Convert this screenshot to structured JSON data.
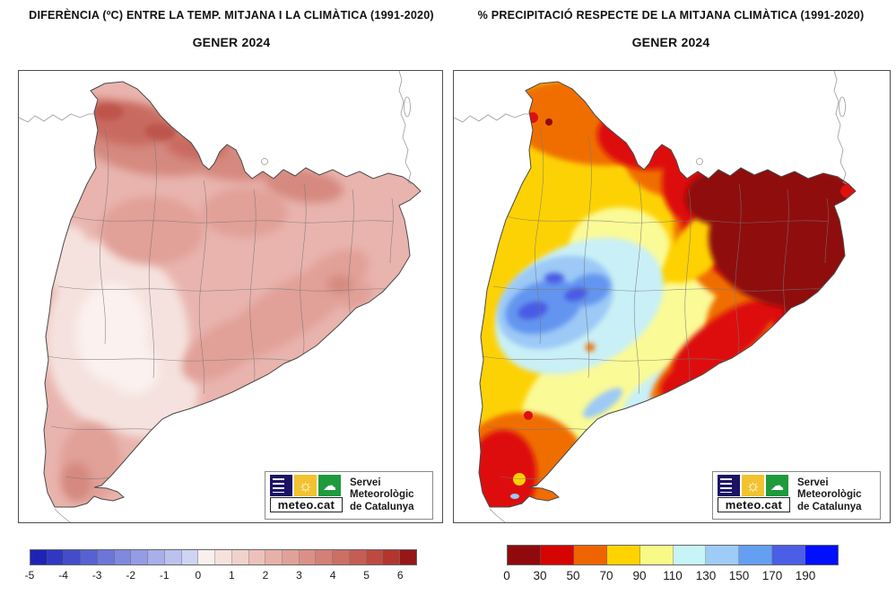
{
  "left_panel": {
    "title_line1": "DIFERÈNCIA (ºC) ENTRE LA TEMP. MITJANA I LA CLIMÀTICA (1991-2020)",
    "title_line2": "GENER 2024",
    "legend": {
      "unit": "ºC",
      "tick_labels": [
        "-5",
        "-4",
        "-3",
        "-2",
        "-1",
        "0",
        "1",
        "2",
        "3",
        "4",
        "5",
        "6"
      ],
      "segment_colors": [
        "#1e23b5",
        "#3038c0",
        "#444dc9",
        "#5861d1",
        "#6c76d8",
        "#8089de",
        "#949ce4",
        "#a8afe9",
        "#bcc1ee",
        "#d0d4f3",
        "#f9efed",
        "#f6e1dd",
        "#f1d1cc",
        "#ecc1bb",
        "#e6b1a9",
        "#e0a198",
        "#da9087",
        "#d38076",
        "#cc6f64",
        "#c45d53",
        "#bc4a41",
        "#b23630",
        "#951718"
      ]
    }
  },
  "right_panel": {
    "title_line1": "% PRECIPITACIÓ RESPECTE DE LA MITJANA CLIMÀTICA (1991-2020)",
    "title_line2": "GENER 2024",
    "legend": {
      "unit": "%",
      "tick_labels": [
        "0",
        "30",
        "50",
        "70",
        "90",
        "110",
        "130",
        "150",
        "170",
        "190"
      ],
      "segment_colors": [
        "#8f0a0c",
        "#d60400",
        "#ee6400",
        "#fed300",
        "#f9f988",
        "#c7f4f6",
        "#9ecbf7",
        "#659ff2",
        "#4b5ee6",
        "#0010ff"
      ]
    }
  },
  "logo": {
    "brand": "meteo.cat",
    "org_line1": "Servei Meteorològic",
    "org_line2": "de Catalunya",
    "square_colors": {
      "blue": "#1b1464",
      "yellow": "#f2c330",
      "green": "#1f9a3d"
    }
  },
  "map_palette": {
    "temperature": {
      "base": "#e9b4ae",
      "light": "#f5e2de",
      "lighter": "#fbf1ee",
      "mid": "#e1a098",
      "dark": "#d5897f",
      "darker": "#c96a60",
      "darkest": "#bd544b"
    },
    "precipitation": {
      "p0": "#8f0a0c",
      "p30": "#dd100f",
      "p50": "#f06e00",
      "p70": "#fdd205",
      "p90": "#fafa96",
      "p110": "#c9f0f6",
      "p130": "#9cc9f6",
      "p150": "#6395f0",
      "p170": "#4a5ae4",
      "p190": "#0010ff"
    }
  }
}
